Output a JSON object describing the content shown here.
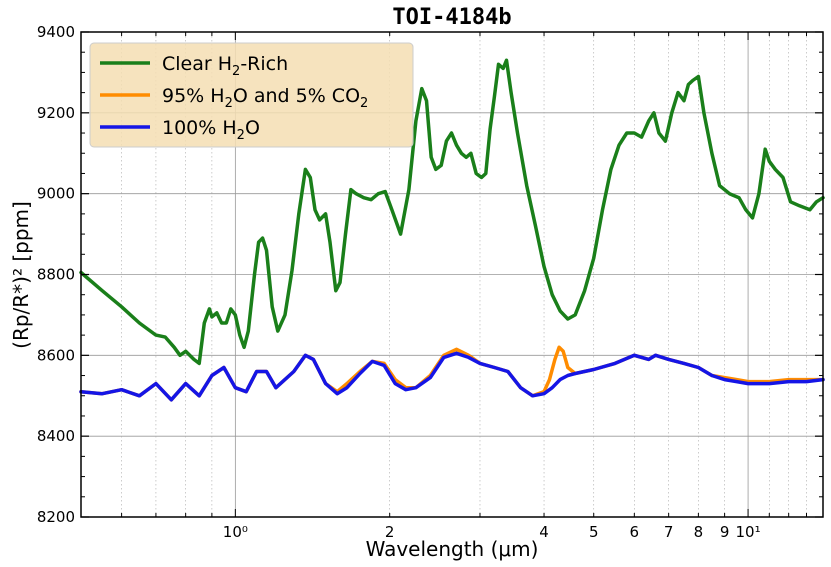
{
  "chart_data": {
    "type": "line",
    "title": "TOI-4184b",
    "xlabel": "Wavelength (μm)",
    "ylabel": "(Rp/R*)² [ppm]",
    "x_scale": "log",
    "xlim": [
      0.5,
      14.0
    ],
    "ylim": [
      8200,
      9400
    ],
    "grid": true,
    "legend_position": "top-left",
    "y_ticks": [
      8200,
      8400,
      8600,
      8800,
      9000,
      9200,
      9400
    ],
    "x_ticks_labeled": [
      {
        "value": 1,
        "label": "10⁰"
      },
      {
        "value": 2,
        "label": "2"
      },
      {
        "value": 4,
        "label": "4"
      },
      {
        "value": 5,
        "label": "5"
      },
      {
        "value": 6,
        "label": "6"
      },
      {
        "value": 7,
        "label": "7"
      },
      {
        "value": 8,
        "label": "8"
      },
      {
        "value": 9,
        "label": "9"
      },
      {
        "value": 10,
        "label": "10¹"
      }
    ],
    "series": [
      {
        "name": "Clear H₂-Rich",
        "color": "#1a7f1a",
        "points": [
          [
            0.5,
            8805
          ],
          [
            0.55,
            8760
          ],
          [
            0.6,
            8720
          ],
          [
            0.65,
            8680
          ],
          [
            0.7,
            8650
          ],
          [
            0.73,
            8645
          ],
          [
            0.76,
            8620
          ],
          [
            0.78,
            8600
          ],
          [
            0.8,
            8610
          ],
          [
            0.83,
            8590
          ],
          [
            0.85,
            8580
          ],
          [
            0.87,
            8680
          ],
          [
            0.89,
            8715
          ],
          [
            0.9,
            8695
          ],
          [
            0.92,
            8705
          ],
          [
            0.94,
            8680
          ],
          [
            0.96,
            8680
          ],
          [
            0.98,
            8715
          ],
          [
            1.0,
            8700
          ],
          [
            1.02,
            8650
          ],
          [
            1.04,
            8620
          ],
          [
            1.06,
            8660
          ],
          [
            1.09,
            8800
          ],
          [
            1.11,
            8880
          ],
          [
            1.13,
            8890
          ],
          [
            1.15,
            8860
          ],
          [
            1.18,
            8720
          ],
          [
            1.21,
            8660
          ],
          [
            1.25,
            8700
          ],
          [
            1.29,
            8810
          ],
          [
            1.33,
            8950
          ],
          [
            1.37,
            9060
          ],
          [
            1.4,
            9040
          ],
          [
            1.43,
            8960
          ],
          [
            1.46,
            8935
          ],
          [
            1.5,
            8950
          ],
          [
            1.53,
            8880
          ],
          [
            1.57,
            8760
          ],
          [
            1.6,
            8780
          ],
          [
            1.64,
            8900
          ],
          [
            1.68,
            9010
          ],
          [
            1.72,
            9000
          ],
          [
            1.78,
            8990
          ],
          [
            1.84,
            8985
          ],
          [
            1.9,
            9000
          ],
          [
            1.96,
            9005
          ],
          [
            2.02,
            8960
          ],
          [
            2.1,
            8900
          ],
          [
            2.18,
            9010
          ],
          [
            2.25,
            9180
          ],
          [
            2.31,
            9260
          ],
          [
            2.36,
            9230
          ],
          [
            2.41,
            9090
          ],
          [
            2.46,
            9060
          ],
          [
            2.52,
            9070
          ],
          [
            2.58,
            9130
          ],
          [
            2.64,
            9150
          ],
          [
            2.7,
            9120
          ],
          [
            2.76,
            9100
          ],
          [
            2.82,
            9090
          ],
          [
            2.88,
            9100
          ],
          [
            2.95,
            9050
          ],
          [
            3.02,
            9040
          ],
          [
            3.08,
            9050
          ],
          [
            3.14,
            9160
          ],
          [
            3.2,
            9240
          ],
          [
            3.26,
            9320
          ],
          [
            3.33,
            9310
          ],
          [
            3.38,
            9330
          ],
          [
            3.45,
            9250
          ],
          [
            3.55,
            9150
          ],
          [
            3.7,
            9020
          ],
          [
            3.85,
            8920
          ],
          [
            4.0,
            8820
          ],
          [
            4.15,
            8750
          ],
          [
            4.3,
            8710
          ],
          [
            4.45,
            8690
          ],
          [
            4.6,
            8700
          ],
          [
            4.8,
            8760
          ],
          [
            5.0,
            8840
          ],
          [
            5.2,
            8960
          ],
          [
            5.4,
            9060
          ],
          [
            5.6,
            9120
          ],
          [
            5.8,
            9150
          ],
          [
            6.0,
            9150
          ],
          [
            6.2,
            9140
          ],
          [
            6.4,
            9180
          ],
          [
            6.55,
            9200
          ],
          [
            6.7,
            9150
          ],
          [
            6.9,
            9130
          ],
          [
            7.1,
            9200
          ],
          [
            7.3,
            9250
          ],
          [
            7.5,
            9230
          ],
          [
            7.65,
            9270
          ],
          [
            7.8,
            9280
          ],
          [
            8.0,
            9290
          ],
          [
            8.2,
            9200
          ],
          [
            8.5,
            9100
          ],
          [
            8.8,
            9020
          ],
          [
            9.2,
            9000
          ],
          [
            9.6,
            8990
          ],
          [
            9.9,
            8960
          ],
          [
            10.2,
            8940
          ],
          [
            10.5,
            9000
          ],
          [
            10.8,
            9110
          ],
          [
            11.0,
            9080
          ],
          [
            11.3,
            9060
          ],
          [
            11.7,
            9040
          ],
          [
            12.1,
            8980
          ],
          [
            12.6,
            8970
          ],
          [
            13.2,
            8960
          ],
          [
            13.6,
            8980
          ],
          [
            14.0,
            8990
          ]
        ]
      },
      {
        "name": "95% H₂O and 5% CO₂",
        "color": "#ff8c00",
        "points": [
          [
            0.5,
            8510
          ],
          [
            0.55,
            8505
          ],
          [
            0.6,
            8515
          ],
          [
            0.65,
            8500
          ],
          [
            0.7,
            8530
          ],
          [
            0.75,
            8490
          ],
          [
            0.8,
            8530
          ],
          [
            0.85,
            8500
          ],
          [
            0.9,
            8550
          ],
          [
            0.95,
            8570
          ],
          [
            1.0,
            8520
          ],
          [
            1.05,
            8510
          ],
          [
            1.1,
            8560
          ],
          [
            1.15,
            8560
          ],
          [
            1.2,
            8520
          ],
          [
            1.3,
            8560
          ],
          [
            1.37,
            8600
          ],
          [
            1.42,
            8590
          ],
          [
            1.5,
            8530
          ],
          [
            1.58,
            8510
          ],
          [
            1.65,
            8530
          ],
          [
            1.75,
            8560
          ],
          [
            1.85,
            8585
          ],
          [
            1.95,
            8580
          ],
          [
            2.05,
            8540
          ],
          [
            2.15,
            8520
          ],
          [
            2.25,
            8520
          ],
          [
            2.4,
            8550
          ],
          [
            2.55,
            8600
          ],
          [
            2.7,
            8615
          ],
          [
            2.85,
            8600
          ],
          [
            3.0,
            8580
          ],
          [
            3.2,
            8570
          ],
          [
            3.4,
            8560
          ],
          [
            3.6,
            8520
          ],
          [
            3.8,
            8500
          ],
          [
            4.0,
            8510
          ],
          [
            4.1,
            8540
          ],
          [
            4.2,
            8590
          ],
          [
            4.28,
            8620
          ],
          [
            4.36,
            8610
          ],
          [
            4.45,
            8570
          ],
          [
            4.6,
            8555
          ],
          [
            5.0,
            8565
          ],
          [
            5.5,
            8580
          ],
          [
            6.0,
            8600
          ],
          [
            6.4,
            8590
          ],
          [
            6.6,
            8600
          ],
          [
            7.0,
            8590
          ],
          [
            7.5,
            8580
          ],
          [
            8.0,
            8570
          ],
          [
            8.5,
            8550
          ],
          [
            9.0,
            8545
          ],
          [
            9.5,
            8540
          ],
          [
            10.0,
            8535
          ],
          [
            11.0,
            8535
          ],
          [
            12.0,
            8540
          ],
          [
            13.0,
            8540
          ],
          [
            14.0,
            8540
          ]
        ]
      },
      {
        "name": "100% H₂O",
        "color": "#1515e6",
        "points": [
          [
            0.5,
            8510
          ],
          [
            0.55,
            8505
          ],
          [
            0.6,
            8515
          ],
          [
            0.65,
            8500
          ],
          [
            0.7,
            8530
          ],
          [
            0.75,
            8490
          ],
          [
            0.8,
            8530
          ],
          [
            0.85,
            8500
          ],
          [
            0.9,
            8550
          ],
          [
            0.95,
            8570
          ],
          [
            1.0,
            8520
          ],
          [
            1.05,
            8510
          ],
          [
            1.1,
            8560
          ],
          [
            1.15,
            8560
          ],
          [
            1.2,
            8520
          ],
          [
            1.3,
            8560
          ],
          [
            1.37,
            8600
          ],
          [
            1.42,
            8590
          ],
          [
            1.5,
            8530
          ],
          [
            1.58,
            8505
          ],
          [
            1.65,
            8520
          ],
          [
            1.75,
            8555
          ],
          [
            1.85,
            8585
          ],
          [
            1.95,
            8575
          ],
          [
            2.05,
            8530
          ],
          [
            2.15,
            8515
          ],
          [
            2.25,
            8520
          ],
          [
            2.4,
            8545
          ],
          [
            2.55,
            8595
          ],
          [
            2.7,
            8605
          ],
          [
            2.85,
            8595
          ],
          [
            3.0,
            8580
          ],
          [
            3.2,
            8570
          ],
          [
            3.4,
            8560
          ],
          [
            3.6,
            8520
          ],
          [
            3.8,
            8500
          ],
          [
            4.0,
            8505
          ],
          [
            4.15,
            8520
          ],
          [
            4.3,
            8540
          ],
          [
            4.45,
            8550
          ],
          [
            4.6,
            8555
          ],
          [
            5.0,
            8565
          ],
          [
            5.5,
            8580
          ],
          [
            6.0,
            8600
          ],
          [
            6.4,
            8590
          ],
          [
            6.6,
            8600
          ],
          [
            7.0,
            8590
          ],
          [
            7.5,
            8580
          ],
          [
            8.0,
            8570
          ],
          [
            8.5,
            8550
          ],
          [
            9.0,
            8540
          ],
          [
            9.5,
            8535
          ],
          [
            10.0,
            8530
          ],
          [
            11.0,
            8530
          ],
          [
            12.0,
            8535
          ],
          [
            13.0,
            8535
          ],
          [
            14.0,
            8540
          ]
        ]
      }
    ]
  },
  "legend": {
    "items": [
      {
        "prefix": "Clear H",
        "sub": "2",
        "suffix": "-Rich"
      },
      {
        "prefix": "95% H",
        "sub": "2",
        "middle": "O and 5% CO",
        "sub2": "2"
      },
      {
        "prefix": "100% H",
        "sub": "2",
        "suffix": "O"
      }
    ]
  }
}
